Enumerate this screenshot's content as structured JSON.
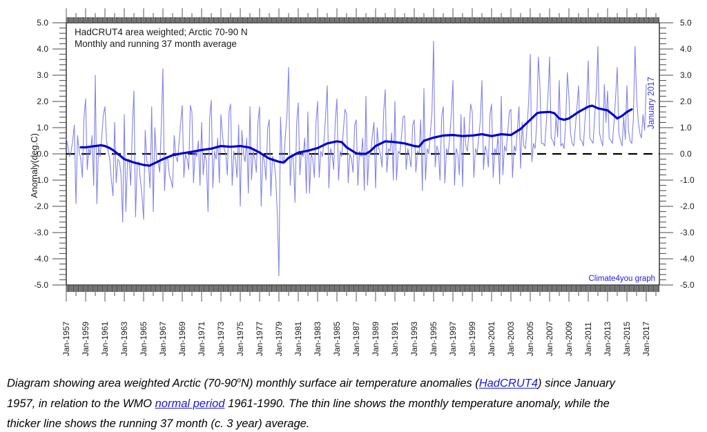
{
  "chart_data": {
    "type": "line",
    "title_lines": [
      "HadCRUT4 area weighted; Arctic 70-90 N",
      "Monthly and running 37 month average"
    ],
    "ylabel": "Anomaly(deg.C)",
    "xlabel": "",
    "ylim": [
      -5.0,
      5.0
    ],
    "ymajor_step": 1.0,
    "yminor_step": 0.2,
    "ytick_labels": [
      "5.0",
      "4.0",
      "3.0",
      "2.0",
      "1.0",
      "0.0",
      "-1.0",
      "-2.0",
      "-3.0",
      "-4.0",
      "-5.0"
    ],
    "x_start_year": 1957,
    "x_end_label_year": 2017,
    "x_frame_end_year": 2018.4,
    "x_label_step_years": 2,
    "x_tick_labels": [
      "Jan-1957",
      "Jan-1959",
      "Jan-1961",
      "Jan-1963",
      "Jan-1965",
      "Jan-1967",
      "Jan-1969",
      "Jan-1971",
      "Jan-1973",
      "Jan-1975",
      "Jan-1977",
      "Jan-1979",
      "Jan-1981",
      "Jan-1983",
      "Jan-1985",
      "Jan-1987",
      "Jan-1989",
      "Jan-1991",
      "Jan-1993",
      "Jan-1995",
      "Jan-1997",
      "Jan-1999",
      "Jan-2001",
      "Jan-2003",
      "Jan-2005",
      "Jan-2007",
      "Jan-2009",
      "Jan-2011",
      "Jan-2013",
      "Jan-2015",
      "Jan-2017"
    ],
    "grid": false,
    "legend_position": "none",
    "zero_line": {
      "value": 0.0,
      "style": "dashed",
      "color": "#000000"
    },
    "series": [
      {
        "name": "monthly-anomaly",
        "legend": "Monthly",
        "color": "#7474e4",
        "width": 1.1,
        "points_per_year": 6,
        "start_year": 1957,
        "values_by_year": [
          [
            0.6,
            0.3,
            -0.1,
            0.1,
            0.5,
            1.1
          ],
          [
            -1.9,
            0.7,
            0.1,
            -0.2,
            -0.9,
            1.4
          ],
          [
            2.1,
            -0.6,
            0.2,
            0.0,
            0.7,
            -1.2
          ],
          [
            3.0,
            -1.9,
            0.3,
            -0.1,
            0.6,
            1.5
          ],
          [
            1.8,
            0.5,
            0.1,
            -0.2,
            -1.0,
            -1.6
          ],
          [
            1.2,
            -1.1,
            -0.2,
            -0.3,
            -0.8,
            -2.6
          ],
          [
            1.5,
            -2.2,
            -0.3,
            -0.2,
            -1.2,
            1.0
          ],
          [
            2.4,
            -2.4,
            -0.4,
            -0.3,
            -1.0,
            -1.6
          ],
          [
            -2.5,
            0.9,
            -0.3,
            -0.4,
            -1.3,
            1.8
          ],
          [
            -2.2,
            1.0,
            -0.2,
            -0.3,
            -0.7,
            1.1
          ],
          [
            3.25,
            -1.4,
            -0.1,
            -0.2,
            -0.8,
            -1.0
          ],
          [
            -1.3,
            0.7,
            -0.1,
            -0.3,
            0.4,
            1.2
          ],
          [
            1.85,
            -0.9,
            0.0,
            -0.2,
            -0.6,
            1.85
          ],
          [
            1.6,
            -1.1,
            0.1,
            -0.1,
            0.5,
            -1.2
          ],
          [
            1.2,
            -0.8,
            0.0,
            -0.3,
            -2.2,
            1.4
          ],
          [
            2.05,
            -1.3,
            0.1,
            -0.2,
            0.6,
            -1.1
          ],
          [
            1.5,
            0.7,
            0.2,
            0.0,
            -0.8,
            1.6
          ],
          [
            1.9,
            -1.2,
            0.1,
            -0.2,
            -0.9,
            1.1
          ],
          [
            -2.0,
            0.9,
            0.0,
            -0.3,
            0.6,
            -1.5
          ],
          [
            1.8,
            -1.0,
            0.1,
            -0.2,
            -0.7,
            1.2
          ],
          [
            1.8,
            -2.0,
            0.0,
            -0.3,
            -1.0,
            1.0
          ],
          [
            1.3,
            -1.6,
            -0.1,
            -0.3,
            -0.9,
            -2.3
          ],
          [
            -4.65,
            1.4,
            -0.2,
            -0.3,
            0.7,
            1.5
          ],
          [
            3.3,
            -1.2,
            0.0,
            -0.2,
            -1.85,
            1.2
          ],
          [
            1.95,
            -0.8,
            0.1,
            -0.1,
            0.6,
            -1.5
          ],
          [
            1.6,
            -1.5,
            0.0,
            -0.2,
            -0.9,
            1.2
          ],
          [
            2.0,
            -0.9,
            0.1,
            -0.1,
            0.5,
            1.5
          ],
          [
            2.6,
            -1.3,
            0.2,
            0.0,
            -0.6,
            1.3
          ],
          [
            2.1,
            -1.0,
            0.1,
            -0.1,
            0.9,
            1.7
          ],
          [
            1.5,
            -1.1,
            0.0,
            -0.2,
            -0.7,
            1.1
          ],
          [
            1.3,
            -1.2,
            0.1,
            -0.1,
            0.6,
            -1.4
          ],
          [
            2.2,
            -1.2,
            0.1,
            0.0,
            0.7,
            1.2
          ],
          [
            -1.3,
            1.0,
            0.2,
            0.0,
            -0.5,
            1.6
          ],
          [
            2.45,
            -0.7,
            0.2,
            0.1,
            0.8,
            -1.0
          ],
          [
            2.0,
            -1.0,
            0.1,
            0.0,
            0.6,
            1.4
          ],
          [
            1.45,
            -0.6,
            0.2,
            -0.1,
            -0.5,
            1.1
          ],
          [
            1.3,
            -0.7,
            0.1,
            0.0,
            1.3,
            -1.4
          ],
          [
            2.5,
            -1.0,
            0.2,
            0.0,
            0.8,
            1.6
          ],
          [
            4.3,
            -0.5,
            0.3,
            0.1,
            -1.0,
            1.4
          ],
          [
            1.8,
            -1.1,
            0.2,
            0.0,
            0.6,
            1.5
          ],
          [
            2.8,
            -1.2,
            0.2,
            0.0,
            -0.8,
            1.5
          ],
          [
            -1.25,
            1.4,
            0.3,
            0.1,
            0.8,
            1.9
          ],
          [
            1.6,
            -0.9,
            0.2,
            0.0,
            0.6,
            1.3
          ],
          [
            2.8,
            -0.6,
            0.3,
            0.1,
            -0.5,
            1.5
          ],
          [
            1.9,
            -0.9,
            0.2,
            0.0,
            0.7,
            -1.15
          ],
          [
            2.2,
            -0.8,
            0.3,
            0.1,
            0.8,
            1.6
          ],
          [
            1.7,
            -0.9,
            0.3,
            0.1,
            0.9,
            1.8
          ],
          [
            -0.55,
            1.2,
            0.3,
            0.2,
            1.0,
            2.0
          ],
          [
            3.8,
            -0.3,
            0.4,
            0.2,
            1.1,
            3.7
          ],
          [
            2.6,
            0.4,
            0.4,
            0.3,
            1.2,
            2.2
          ],
          [
            3.7,
            0.6,
            0.5,
            0.3,
            1.4,
            0.65
          ],
          [
            2.8,
            0.3,
            0.4,
            0.2,
            1.2,
            3.1
          ],
          [
            2.2,
            0.8,
            0.4,
            0.3,
            1.0,
            1.8
          ],
          [
            2.6,
            0.55,
            0.5,
            0.3,
            1.3,
            2.0
          ],
          [
            3.55,
            0.6,
            0.5,
            0.4,
            1.4,
            2.4
          ],
          [
            4.1,
            0.8,
            0.5,
            0.3,
            2.65,
            1.2
          ],
          [
            2.4,
            0.6,
            0.5,
            0.4,
            1.2,
            2.2
          ],
          [
            3.3,
            0.8,
            0.5,
            0.3,
            1.4,
            0.55
          ],
          [
            2.6,
            0.9,
            0.5,
            0.4,
            1.3,
            4.1
          ],
          [
            2.2,
            1.26,
            0.8,
            0.6,
            1.5,
            0.9
          ]
        ],
        "final_point": {
          "x": 2017.0,
          "value": 2.66
        }
      },
      {
        "name": "running-37-month-average",
        "legend": "Running 37 month average",
        "color": "#0000cc",
        "width": 3.2,
        "points": [
          [
            1958.5,
            0.25
          ],
          [
            1959,
            0.25
          ],
          [
            1960,
            0.3
          ],
          [
            1960.6,
            0.33
          ],
          [
            1961,
            0.3
          ],
          [
            1961.5,
            0.22
          ],
          [
            1962,
            0.1
          ],
          [
            1962.5,
            -0.05
          ],
          [
            1963,
            -0.2
          ],
          [
            1964,
            -0.33
          ],
          [
            1965,
            -0.42
          ],
          [
            1965.6,
            -0.45
          ],
          [
            1966,
            -0.38
          ],
          [
            1967,
            -0.2
          ],
          [
            1968,
            -0.05
          ],
          [
            1969,
            0.02
          ],
          [
            1970,
            0.08
          ],
          [
            1971,
            0.15
          ],
          [
            1972,
            0.2
          ],
          [
            1973,
            0.3
          ],
          [
            1974,
            0.27
          ],
          [
            1975,
            0.3
          ],
          [
            1976,
            0.24
          ],
          [
            1977,
            0.05
          ],
          [
            1978,
            -0.18
          ],
          [
            1979,
            -0.3
          ],
          [
            1979.5,
            -0.33
          ],
          [
            1980,
            -0.15
          ],
          [
            1981,
            0.05
          ],
          [
            1982,
            0.12
          ],
          [
            1983,
            0.22
          ],
          [
            1984,
            0.4
          ],
          [
            1985,
            0.48
          ],
          [
            1985.5,
            0.45
          ],
          [
            1986,
            0.25
          ],
          [
            1987,
            0.02
          ],
          [
            1987.5,
            0.0
          ],
          [
            1988,
            0.0
          ],
          [
            1988.5,
            0.12
          ],
          [
            1989,
            0.3
          ],
          [
            1990,
            0.48
          ],
          [
            1991,
            0.45
          ],
          [
            1992,
            0.4
          ],
          [
            1993,
            0.3
          ],
          [
            1993.5,
            0.28
          ],
          [
            1994,
            0.5
          ],
          [
            1995,
            0.62
          ],
          [
            1996,
            0.7
          ],
          [
            1997,
            0.72
          ],
          [
            1998,
            0.68
          ],
          [
            1999,
            0.7
          ],
          [
            2000,
            0.75
          ],
          [
            2001,
            0.68
          ],
          [
            2002,
            0.75
          ],
          [
            2003,
            0.72
          ],
          [
            2004,
            0.95
          ],
          [
            2005,
            1.3
          ],
          [
            2005.7,
            1.55
          ],
          [
            2006,
            1.58
          ],
          [
            2007,
            1.6
          ],
          [
            2007.5,
            1.55
          ],
          [
            2008,
            1.35
          ],
          [
            2008.5,
            1.3
          ],
          [
            2009,
            1.35
          ],
          [
            2010,
            1.6
          ],
          [
            2010.5,
            1.7
          ],
          [
            2011,
            1.8
          ],
          [
            2011.4,
            1.84
          ],
          [
            2012,
            1.74
          ],
          [
            2013,
            1.66
          ],
          [
            2013.7,
            1.45
          ],
          [
            2014,
            1.35
          ],
          [
            2014.5,
            1.45
          ],
          [
            2015,
            1.6
          ],
          [
            2015.5,
            1.7
          ]
        ]
      }
    ],
    "annotations": [
      {
        "id": "january-2017",
        "text": "January 2017",
        "color": "#3a3ad6"
      },
      {
        "id": "watermark",
        "text": "Climate4you graph",
        "color": "#2222dd"
      }
    ]
  },
  "caption": {
    "link_color": "#1a1ad2",
    "lines": [
      [
        {
          "style": "plain",
          "text": "Diagram showing area weighted Arctic (70-90"
        },
        {
          "style": "sup",
          "text": "o"
        },
        {
          "style": "plain",
          "text": "N) monthly surface air temperature anomalies ("
        },
        {
          "style": "link",
          "id": "hadcrut4-link",
          "text": "HadCRUT4"
        },
        {
          "style": "plain",
          "text": ") since January"
        }
      ],
      [
        {
          "style": "plain",
          "text": "1957, in relation to the WMO "
        },
        {
          "style": "link",
          "id": "normal-period-link",
          "text": "normal period"
        },
        {
          "style": "plain",
          "text": " 1961-1990. The thin line shows the monthly temperature anomaly, while the"
        }
      ],
      [
        {
          "style": "plain",
          "text": "thicker line shows the running 37 month (c. 3 year) average."
        }
      ]
    ]
  }
}
